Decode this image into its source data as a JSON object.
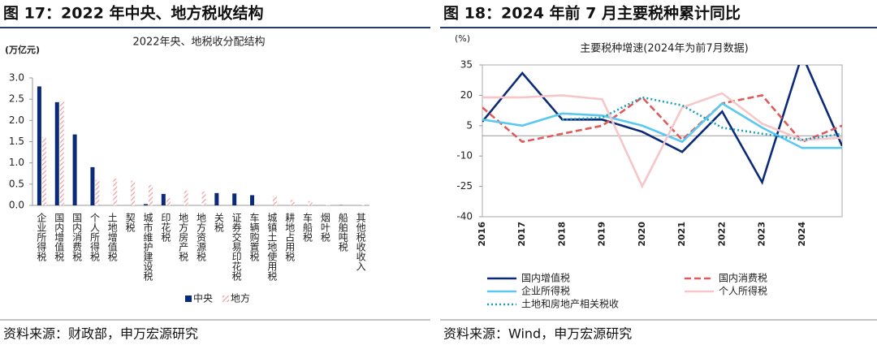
{
  "chart_data": [
    {
      "type": "bar",
      "figure_title": "图 17：2022 年中央、地方税收结构",
      "title": "2022年央、地税收分配结构",
      "y_unit": "(万亿元)",
      "source": "资料来源：财政部，申万宏源研究",
      "categories": [
        "企业所得税",
        "国内增值税",
        "国内消费税",
        "个人所得税",
        "土地增值税",
        "契税",
        "城市维护建设税",
        "印花税",
        "地方房产税",
        "地方资源税",
        "关税",
        "证券交易印花税",
        "车辆购置税",
        "城镇土地使用税",
        "耕地占用税",
        "车船税",
        "烟叶税",
        "船舶吨税",
        "其他税收收入"
      ],
      "series": [
        {
          "name": "中央",
          "color": "#0b2a78",
          "pattern": "solid",
          "values": [
            2.8,
            2.43,
            1.67,
            0.9,
            0,
            0,
            0.03,
            0.27,
            0,
            0,
            0.29,
            0.28,
            0.24,
            0,
            0,
            0,
            0,
            0.005,
            0
          ]
        },
        {
          "name": "地方",
          "color": "#f0a0a0",
          "pattern": "hatch",
          "values": [
            1.6,
            2.45,
            0,
            0.6,
            0.63,
            0.58,
            0.48,
            0.17,
            0.35,
            0.33,
            0,
            0,
            0,
            0.22,
            0.13,
            0.1,
            0.01,
            0,
            0.02
          ]
        }
      ],
      "ylim": [
        0,
        3
      ],
      "yticks": [
        {
          "value": 0,
          "label": "0.0"
        },
        {
          "value": 0.5,
          "label": "0.5"
        },
        {
          "value": 1,
          "label": "1.0"
        },
        {
          "value": 1.5,
          "label": "1.5"
        },
        {
          "value": 2,
          "label": "2.0"
        },
        {
          "value": 2.5,
          "label": "2.5"
        },
        {
          "value": 3,
          "label": "3.0"
        }
      ],
      "legend": "bottom"
    },
    {
      "type": "line",
      "figure_title": "图 18：2024 年前 7 月主要税种累计同比",
      "title": "主要税种增速(2024年为前7月数据)",
      "y_unit": "(%)",
      "source": "资料来源：Wind，申万宏源研究",
      "categories": [
        "2016",
        "2017",
        "2018",
        "2019",
        "2020",
        "2021",
        "2022",
        "2023",
        "2024",
        null
      ],
      "series": [
        {
          "name": "国内增值税",
          "color": "#0b2a78",
          "style": "solid",
          "values": [
            7,
            31,
            8,
            8,
            2,
            -8,
            12,
            -23,
            40,
            -5
          ]
        },
        {
          "name": "国内消费税",
          "color": "#e05a5a",
          "style": "dashed",
          "values": [
            14,
            -3,
            1,
            5,
            19,
            -2,
            16,
            20,
            -3,
            5
          ]
        },
        {
          "name": "企业所得税",
          "color": "#5bc8f0",
          "style": "solid",
          "values": [
            8,
            5,
            11,
            10,
            5,
            -3,
            16,
            4,
            -6,
            -6
          ]
        },
        {
          "name": "个人所得税",
          "color": "#f6c6c8",
          "style": "solid",
          "values": [
            19,
            19,
            20,
            18,
            -25,
            14,
            21,
            6,
            -2,
            -1
          ]
        },
        {
          "name": "土地和房地产相关税收",
          "color": "#1a9fc0",
          "style": "dotted",
          "values": [
            null,
            null,
            8,
            9,
            19,
            15,
            4,
            1,
            -2,
            1
          ]
        }
      ],
      "ylim": [
        -40,
        35
      ],
      "yticks": [
        -40,
        -25,
        -10,
        5,
        20,
        35
      ],
      "legend": "bottom"
    }
  ]
}
